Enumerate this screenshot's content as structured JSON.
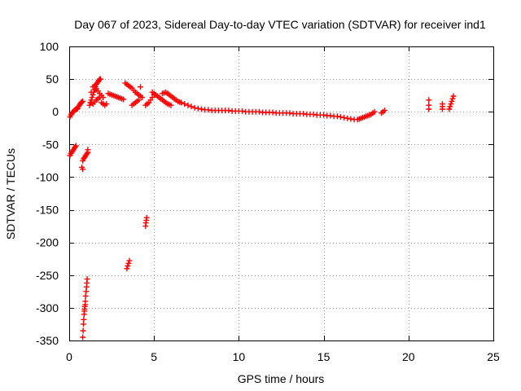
{
  "chart_data": {
    "type": "scatter",
    "title": "Day 067 of 2023, Sidereal Day-to-day VTEC variation (SDTVAR) for receiver ind1",
    "xlabel": "GPS time / hours",
    "ylabel": "SDTVAR / TECUs",
    "xlim": [
      0,
      25
    ],
    "ylim": [
      -350,
      100
    ],
    "xticks": [
      0,
      5,
      10,
      15,
      20,
      25
    ],
    "yticks": [
      100,
      50,
      0,
      -50,
      -100,
      -150,
      -200,
      -250,
      -300,
      -350
    ],
    "grid": true,
    "marker": "+",
    "color": "#ff0000",
    "series": [
      {
        "name": "SDTVAR",
        "points": [
          [
            0.05,
            -8
          ],
          [
            0.1,
            -5
          ],
          [
            0.15,
            -3
          ],
          [
            0.2,
            -1
          ],
          [
            0.25,
            0
          ],
          [
            0.3,
            2
          ],
          [
            0.35,
            3
          ],
          [
            0.4,
            4
          ],
          [
            0.45,
            4
          ],
          [
            0.5,
            5
          ],
          [
            0.55,
            8
          ],
          [
            0.6,
            10
          ],
          [
            0.65,
            12
          ],
          [
            0.7,
            14
          ],
          [
            0.75,
            15
          ],
          [
            0.8,
            16
          ],
          [
            0.05,
            -67
          ],
          [
            0.1,
            -64
          ],
          [
            0.15,
            -62
          ],
          [
            0.2,
            -60
          ],
          [
            0.25,
            -58
          ],
          [
            0.3,
            -56
          ],
          [
            0.35,
            -54
          ],
          [
            0.4,
            -52
          ],
          [
            0.75,
            -85
          ],
          [
            0.8,
            -88
          ],
          [
            0.8,
            -75
          ],
          [
            0.85,
            -72
          ],
          [
            0.9,
            -70
          ],
          [
            0.95,
            -68
          ],
          [
            1.0,
            -66
          ],
          [
            1.05,
            -64
          ],
          [
            1.1,
            -62
          ],
          [
            1.1,
            -58
          ],
          [
            0.8,
            -345
          ],
          [
            0.82,
            -335
          ],
          [
            0.84,
            -325
          ],
          [
            0.86,
            -318
          ],
          [
            0.88,
            -310
          ],
          [
            0.9,
            -305
          ],
          [
            0.92,
            -298
          ],
          [
            0.95,
            -290
          ],
          [
            0.97,
            -282
          ],
          [
            1.0,
            -275
          ],
          [
            1.02,
            -268
          ],
          [
            1.04,
            -262
          ],
          [
            1.06,
            -256
          ],
          [
            0.9,
            -302
          ],
          [
            0.95,
            -295
          ],
          [
            1.2,
            10
          ],
          [
            1.25,
            14
          ],
          [
            1.3,
            18
          ],
          [
            1.35,
            22
          ],
          [
            1.4,
            26
          ],
          [
            1.45,
            30
          ],
          [
            1.5,
            34
          ],
          [
            1.55,
            38
          ],
          [
            1.6,
            42
          ],
          [
            1.65,
            44
          ],
          [
            1.7,
            46
          ],
          [
            1.75,
            48
          ],
          [
            1.8,
            50
          ],
          [
            1.85,
            50
          ],
          [
            1.3,
            30
          ],
          [
            1.4,
            38
          ],
          [
            1.5,
            40
          ],
          [
            1.6,
            35
          ],
          [
            1.7,
            32
          ],
          [
            1.8,
            28
          ],
          [
            1.9,
            25
          ],
          [
            2.0,
            22
          ],
          [
            1.3,
            14
          ],
          [
            1.4,
            12
          ],
          [
            1.5,
            15
          ],
          [
            1.6,
            18
          ],
          [
            1.7,
            20
          ],
          [
            1.8,
            22
          ],
          [
            1.9,
            14
          ],
          [
            2.0,
            12
          ],
          [
            2.1,
            10
          ],
          [
            2.2,
            12
          ],
          [
            2.3,
            28
          ],
          [
            2.4,
            27
          ],
          [
            2.5,
            26
          ],
          [
            2.6,
            25
          ],
          [
            2.7,
            24
          ],
          [
            2.8,
            23
          ],
          [
            2.9,
            22
          ],
          [
            3.0,
            21
          ],
          [
            3.1,
            20
          ],
          [
            3.2,
            19
          ],
          [
            3.3,
            44
          ],
          [
            3.4,
            42
          ],
          [
            3.5,
            40
          ],
          [
            3.6,
            38
          ],
          [
            3.7,
            36
          ],
          [
            3.8,
            33
          ],
          [
            3.9,
            30
          ],
          [
            4.0,
            28
          ],
          [
            4.1,
            26
          ],
          [
            4.2,
            24
          ],
          [
            4.3,
            22
          ],
          [
            3.7,
            10
          ],
          [
            3.8,
            12
          ],
          [
            3.9,
            14
          ],
          [
            4.0,
            16
          ],
          [
            4.1,
            18
          ],
          [
            4.2,
            38
          ],
          [
            4.5,
            10
          ],
          [
            4.6,
            12
          ],
          [
            4.7,
            14
          ],
          [
            4.8,
            18
          ],
          [
            4.9,
            22
          ],
          [
            5.0,
            26
          ],
          [
            4.9,
            30
          ],
          [
            5.0,
            28
          ],
          [
            5.1,
            26
          ],
          [
            5.2,
            24
          ],
          [
            5.3,
            22
          ],
          [
            5.4,
            20
          ],
          [
            5.5,
            18
          ],
          [
            5.6,
            16
          ],
          [
            5.7,
            14
          ],
          [
            5.8,
            12
          ],
          [
            5.9,
            11
          ],
          [
            6.0,
            10
          ],
          [
            5.5,
            28
          ],
          [
            5.6,
            29
          ],
          [
            5.7,
            30
          ],
          [
            5.8,
            28
          ],
          [
            5.9,
            26
          ],
          [
            6.0,
            24
          ],
          [
            6.1,
            22
          ],
          [
            6.2,
            20
          ],
          [
            6.3,
            18
          ],
          [
            6.4,
            16
          ],
          [
            6.5,
            15
          ],
          [
            6.6,
            14
          ],
          [
            6.8,
            12
          ],
          [
            7.0,
            10
          ],
          [
            7.2,
            8
          ],
          [
            7.4,
            6
          ],
          [
            7.6,
            5
          ],
          [
            7.8,
            4
          ],
          [
            8.0,
            3
          ],
          [
            8.2,
            3
          ],
          [
            8.4,
            2
          ],
          [
            8.6,
            2
          ],
          [
            8.8,
            2
          ],
          [
            9.0,
            2
          ],
          [
            9.2,
            2
          ],
          [
            9.4,
            2
          ],
          [
            9.6,
            1
          ],
          [
            9.8,
            1
          ],
          [
            10.0,
            1
          ],
          [
            10.2,
            1
          ],
          [
            10.4,
            0
          ],
          [
            10.6,
            0
          ],
          [
            10.8,
            0
          ],
          [
            11.0,
            0
          ],
          [
            11.2,
            0
          ],
          [
            11.4,
            -1
          ],
          [
            11.6,
            -1
          ],
          [
            11.8,
            -1
          ],
          [
            12.0,
            -1
          ],
          [
            12.2,
            -2
          ],
          [
            12.4,
            -2
          ],
          [
            12.6,
            -2
          ],
          [
            12.8,
            -2
          ],
          [
            13.0,
            -2
          ],
          [
            13.2,
            -3
          ],
          [
            13.4,
            -3
          ],
          [
            13.6,
            -3
          ],
          [
            13.8,
            -3
          ],
          [
            14.0,
            -4
          ],
          [
            14.2,
            -4
          ],
          [
            14.4,
            -4
          ],
          [
            14.6,
            -5
          ],
          [
            14.8,
            -5
          ],
          [
            15.0,
            -5
          ],
          [
            15.2,
            -6
          ],
          [
            15.4,
            -6
          ],
          [
            15.6,
            -7
          ],
          [
            15.8,
            -7
          ],
          [
            16.0,
            -8
          ],
          [
            16.2,
            -9
          ],
          [
            16.4,
            -10
          ],
          [
            16.6,
            -11
          ],
          [
            16.8,
            -12
          ],
          [
            17.0,
            -12
          ],
          [
            17.1,
            -11
          ],
          [
            17.2,
            -10
          ],
          [
            17.3,
            -9
          ],
          [
            17.4,
            -8
          ],
          [
            17.5,
            -7
          ],
          [
            17.6,
            -6
          ],
          [
            17.7,
            -5
          ],
          [
            17.8,
            -4
          ],
          [
            17.9,
            -2
          ],
          [
            18.0,
            0
          ],
          [
            18.4,
            -2
          ],
          [
            18.5,
            0
          ],
          [
            18.6,
            2
          ],
          [
            3.4,
            -240
          ],
          [
            3.45,
            -236
          ],
          [
            3.5,
            -232
          ],
          [
            3.55,
            -228
          ],
          [
            4.5,
            -175
          ],
          [
            4.52,
            -170
          ],
          [
            4.55,
            -166
          ],
          [
            4.57,
            -162
          ],
          [
            21.2,
            4
          ],
          [
            21.2,
            10
          ],
          [
            21.2,
            18
          ],
          [
            22.0,
            4
          ],
          [
            22.0,
            8
          ],
          [
            22.0,
            12
          ],
          [
            22.4,
            4
          ],
          [
            22.45,
            8
          ],
          [
            22.5,
            12
          ],
          [
            22.55,
            16
          ],
          [
            22.6,
            20
          ],
          [
            22.65,
            24
          ]
        ]
      }
    ]
  }
}
